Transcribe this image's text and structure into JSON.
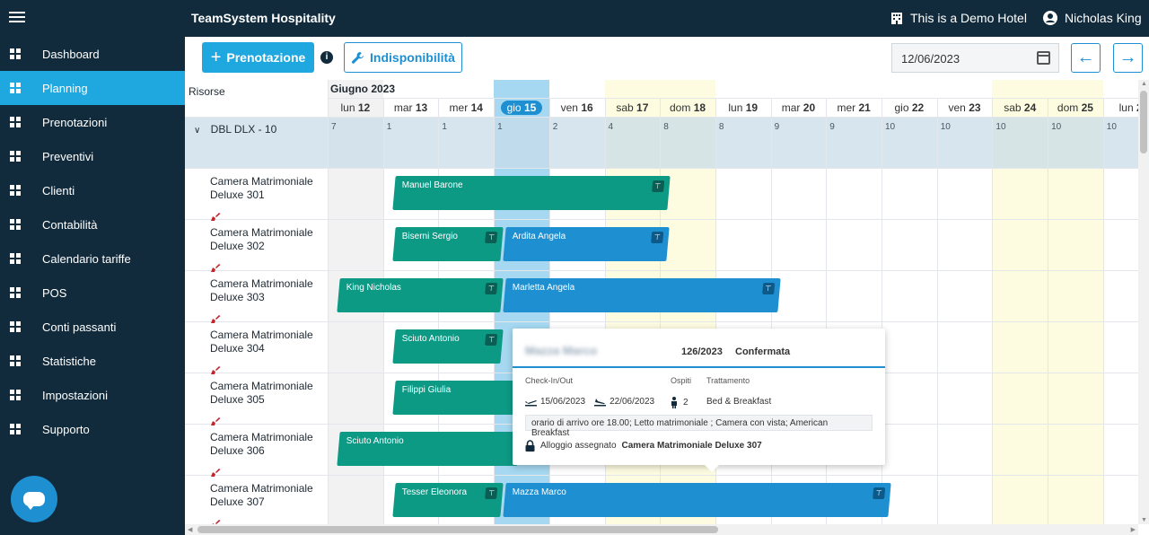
{
  "header": {
    "app_title": "TeamSystem Hospitality",
    "hotel": "This is a Demo Hotel",
    "user": "Nicholas King"
  },
  "sidebar": {
    "items": [
      {
        "label": "Dashboard",
        "icon": "dashboard-icon"
      },
      {
        "label": "Planning",
        "icon": "planning-icon",
        "active": true
      },
      {
        "label": "Prenotazioni",
        "icon": "prenotazioni-icon"
      },
      {
        "label": "Preventivi",
        "icon": "preventivi-icon"
      },
      {
        "label": "Clienti",
        "icon": "clienti-icon"
      },
      {
        "label": "Contabilità",
        "icon": "contabilita-icon"
      },
      {
        "label": "Calendario tariffe",
        "icon": "calendar-icon"
      },
      {
        "label": "POS",
        "icon": "pos-icon"
      },
      {
        "label": "Conti passanti",
        "icon": "conti-icon"
      },
      {
        "label": "Statistiche",
        "icon": "stats-icon"
      },
      {
        "label": "Impostazioni",
        "icon": "gear-icon"
      },
      {
        "label": "Supporto",
        "icon": "help-icon"
      }
    ]
  },
  "toolbar": {
    "prenotazione_label": "Prenotazione",
    "indisponibilita_label": "Indisponibilità",
    "date_value": "12/06/2023",
    "info": "i",
    "plus": "+",
    "prev": "←",
    "next": "→"
  },
  "planning": {
    "resources_label": "Risorse",
    "month": "Giugno 2023",
    "days": [
      {
        "w": "lun",
        "d": "12",
        "count": "7"
      },
      {
        "w": "mar",
        "d": "13",
        "count": "1"
      },
      {
        "w": "mer",
        "d": "14",
        "count": "1"
      },
      {
        "w": "gio",
        "d": "15",
        "count": "1",
        "today": true
      },
      {
        "w": "ven",
        "d": "16",
        "count": "2"
      },
      {
        "w": "sab",
        "d": "17",
        "count": "4"
      },
      {
        "w": "dom",
        "d": "18",
        "count": "8"
      },
      {
        "w": "lun",
        "d": "19",
        "count": "8"
      },
      {
        "w": "mar",
        "d": "20",
        "count": "9"
      },
      {
        "w": "mer",
        "d": "21",
        "count": "9"
      },
      {
        "w": "gio",
        "d": "22",
        "count": "10"
      },
      {
        "w": "ven",
        "d": "23",
        "count": "10"
      },
      {
        "w": "sab",
        "d": "24",
        "count": "10"
      },
      {
        "w": "dom",
        "d": "25",
        "count": "10"
      },
      {
        "w": "lun",
        "d": "2",
        "count": "10"
      }
    ],
    "group": "DBL DLX - 10",
    "rooms": [
      {
        "l1": "Camera Matrimoniale",
        "l2": "Deluxe 301"
      },
      {
        "l1": "Camera Matrimoniale",
        "l2": "Deluxe 302"
      },
      {
        "l1": "Camera Matrimoniale",
        "l2": "Deluxe 303"
      },
      {
        "l1": "Camera Matrimoniale",
        "l2": "Deluxe 304"
      },
      {
        "l1": "Camera Matrimoniale",
        "l2": "Deluxe 305"
      },
      {
        "l1": "Camera Matrimoniale",
        "l2": "Deluxe 306"
      },
      {
        "l1": "Camera Matrimoniale",
        "l2": "Deluxe 307"
      }
    ],
    "reservations": [
      {
        "name": "Manuel Barone",
        "room": 0,
        "start": 1.2,
        "end": 6.2,
        "color": "green",
        "pin": true
      },
      {
        "name": "Biserni Sergio",
        "room": 1,
        "start": 1.2,
        "end": 3.2,
        "color": "green",
        "pin": true
      },
      {
        "name": "Ardita Angela",
        "room": 1,
        "start": 3.2,
        "end": 6.2,
        "color": "blue",
        "pin": true
      },
      {
        "name": "King Nicholas",
        "room": 2,
        "start": 0.2,
        "end": 3.2,
        "color": "green",
        "pin": true
      },
      {
        "name": "Marletta Angela",
        "room": 2,
        "start": 3.2,
        "end": 8.2,
        "color": "blue",
        "pin": true
      },
      {
        "name": "Sciuto Antonio",
        "room": 3,
        "start": 1.2,
        "end": 3.2,
        "color": "green",
        "pin": true
      },
      {
        "name": "Filippi Giulia",
        "room": 4,
        "start": 1.2,
        "end": 3.5,
        "color": "green",
        "pin": false
      },
      {
        "name": "Sciuto Antonio",
        "room": 5,
        "start": 0.2,
        "end": 3.5,
        "color": "green",
        "pin": false
      },
      {
        "name": "Tesser Eleonora",
        "room": 6,
        "start": 1.2,
        "end": 3.2,
        "color": "green",
        "pin": true
      },
      {
        "name": "Mazza Marco",
        "room": 6,
        "start": 3.2,
        "end": 10.2,
        "color": "blue",
        "pin": true
      }
    ]
  },
  "tooltip": {
    "name": "Mazza Marco",
    "number": "126/2023",
    "status": "Confermata",
    "checkinout_label": "Check-In/Out",
    "ospiti_label": "Ospiti",
    "trattamento_label": "Trattamento",
    "checkin": "15/06/2023",
    "checkout": "22/06/2023",
    "guests": "2",
    "treatment": "Bed & Breakfast",
    "notes": "orario di arrivo ore 18.00; Letto matrimoniale ; Camera con vista; American Breakfast",
    "alloggio_label": "Alloggio assegnato",
    "alloggio_value": "Camera Matrimoniale Deluxe 307"
  },
  "colors": {
    "sidebar": "#112b3c",
    "accent": "#1fa7e0",
    "green": "#0d9a85",
    "blue": "#1e8fd0",
    "weekend": "#fdfbe0",
    "today": "#a6d8f2"
  }
}
